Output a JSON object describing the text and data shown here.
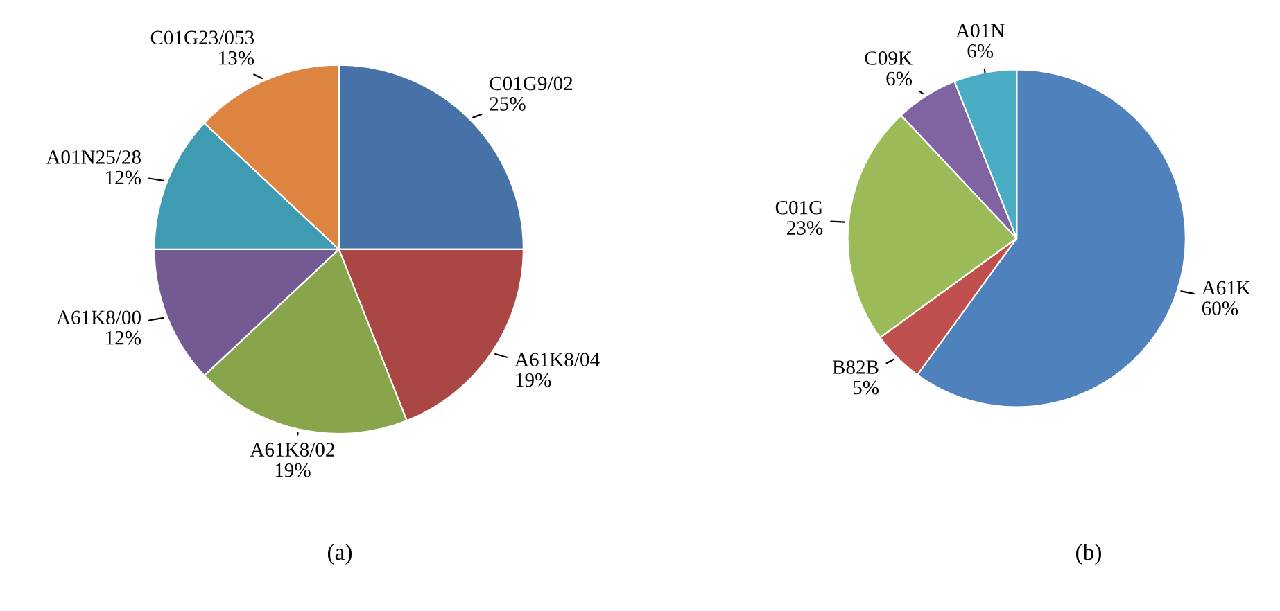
{
  "chart_data": [
    {
      "type": "pie",
      "categories": [
        "C01G9/02",
        "A61K8/04",
        "A61K8/02",
        "A61K8/00",
        "A01N25/28",
        "C01G23/053"
      ],
      "values": [
        25,
        19,
        19,
        12,
        12,
        13
      ],
      "value_labels": [
        "25%",
        "19%",
        "19%",
        "12%",
        "12%",
        "13%"
      ],
      "colors": [
        "#4672a8",
        "#aa4744",
        "#89a54b",
        "#735a92",
        "#3f9bb2",
        "#dc8440"
      ],
      "annotations": [
        "(a)"
      ]
    },
    {
      "type": "pie",
      "categories": [
        "A61K",
        "B82B",
        "C01G",
        "C09K",
        "A01N"
      ],
      "values": [
        60,
        5,
        23,
        6,
        6
      ],
      "value_labels": [
        "60%",
        "5%",
        "23%",
        "6%",
        "6%"
      ],
      "colors": [
        "#4f81bd",
        "#c0504d",
        "#9bbb59",
        "#8064a2",
        "#4bacc6"
      ],
      "annotations": [
        "(b)"
      ]
    }
  ]
}
